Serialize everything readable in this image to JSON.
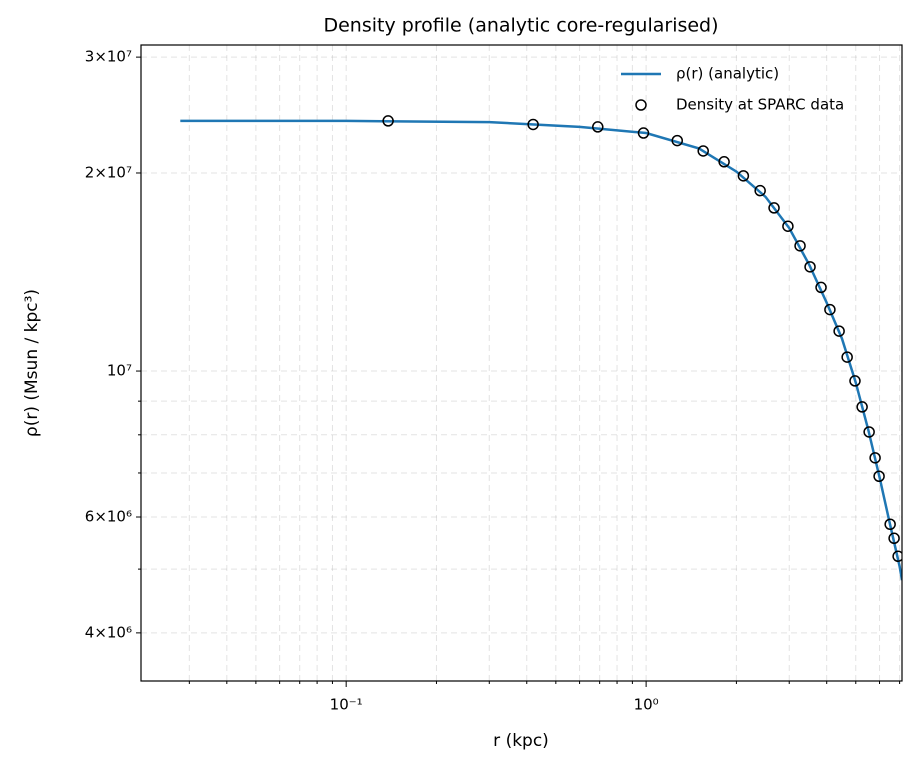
{
  "chart_data": {
    "type": "line",
    "title": "Density profile (analytic core-regularised)",
    "x_label": "r (kpc)",
    "y_label": "ρ(r) (Msun / kpc³)",
    "log_x": true,
    "log_y": true,
    "grid": true,
    "legend": "upper right",
    "xlim": [
      0.0207,
      7.13
    ],
    "ylim": [
      3380000,
      31300000
    ],
    "xticks": [
      {
        "value": 0.1,
        "label": "10⁻¹"
      },
      {
        "value": 1,
        "label": "10⁰"
      }
    ],
    "xminorticks": [
      0.03,
      0.04,
      0.05,
      0.06,
      0.07,
      0.08,
      0.09,
      0.2,
      0.3,
      0.4,
      0.5,
      0.6,
      0.7,
      0.8,
      0.9,
      2,
      3,
      4,
      5,
      6,
      7
    ],
    "yticks": [
      {
        "value": 4000000,
        "label": "4×10⁶"
      },
      {
        "value": 6000000,
        "label": "6×10⁶"
      },
      {
        "value": 10000000,
        "label": "10⁷"
      },
      {
        "value": 20000000,
        "label": "2×10⁷"
      },
      {
        "value": 30000000,
        "label": "3×10⁷"
      }
    ],
    "yminorticks": [
      5000000,
      7000000,
      8000000,
      9000000
    ],
    "series": [
      {
        "name": "ρ(r) (analytic)",
        "type": "line",
        "color": "#1f77b4",
        "x": [
          0.028,
          0.1,
          0.3,
          0.6,
          1.0,
          1.5,
          2.0,
          2.5,
          3.0,
          3.5,
          4.0,
          4.5,
          5.0,
          5.5,
          6.0,
          6.5,
          7.0,
          7.13
        ],
        "values": [
          24000000,
          24000000,
          23900000,
          23500000,
          23000000,
          21800000,
          20100000,
          18400000,
          16500000,
          14500000,
          12700000,
          11200000,
          9600000,
          8150000,
          6900000,
          5860000,
          5050000,
          4810000
        ]
      },
      {
        "name": "Density at SPARC data",
        "type": "scatter",
        "color": "#000000",
        "x": [
          0.138,
          0.42,
          0.69,
          0.98,
          1.27,
          1.55,
          1.82,
          2.11,
          2.4,
          2.67,
          2.97,
          3.26,
          3.52,
          3.83,
          4.1,
          4.4,
          4.68,
          4.97,
          5.25,
          5.54,
          5.8,
          5.98,
          6.51,
          6.71,
          6.92
        ],
        "values": [
          24000000,
          23700000,
          23500000,
          23000000,
          22400000,
          21600000,
          20800000,
          19800000,
          18800000,
          17700000,
          16600000,
          15500000,
          14400000,
          13400000,
          12400000,
          11500000,
          10500000,
          9660000,
          8820000,
          8080000,
          7380000,
          6920000,
          5850000,
          5570000,
          5230000
        ]
      }
    ]
  }
}
